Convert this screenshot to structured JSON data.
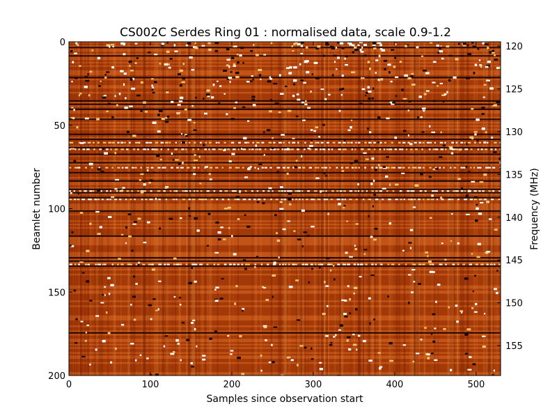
{
  "chart_data": {
    "type": "heatmap",
    "title": "CS002C Serdes Ring 01 : normalised data, scale 0.9-1.2",
    "xlabel": "Samples since observation start",
    "ylabel": "Beamlet number",
    "y2label": "Frequency (MHz)",
    "xlim": [
      0,
      530
    ],
    "ylim": [
      0,
      200
    ],
    "y_inverted": true,
    "y2lim": [
      119.5,
      158.5
    ],
    "x_ticks": [
      0,
      100,
      200,
      300,
      400,
      500
    ],
    "y_ticks": [
      0,
      50,
      100,
      150,
      200
    ],
    "y2_ticks": [
      120,
      125,
      130,
      135,
      140,
      145,
      150,
      155
    ],
    "color_scale": [
      0.9,
      1.2
    ],
    "colormap": [
      "#3b0a00",
      "#7a1e00",
      "#a53a08",
      "#c8581a",
      "#e08a3a",
      "#f5c870",
      "#ffffff"
    ],
    "dark_rows": [
      3,
      8,
      21,
      35,
      37,
      40,
      46,
      55,
      58,
      63,
      67,
      72,
      78,
      83,
      88,
      90,
      93,
      101,
      116,
      129,
      131,
      134,
      174
    ],
    "bright_rows": [
      60,
      64,
      75,
      89,
      94,
      133
    ],
    "grid": false,
    "legend": "none"
  }
}
